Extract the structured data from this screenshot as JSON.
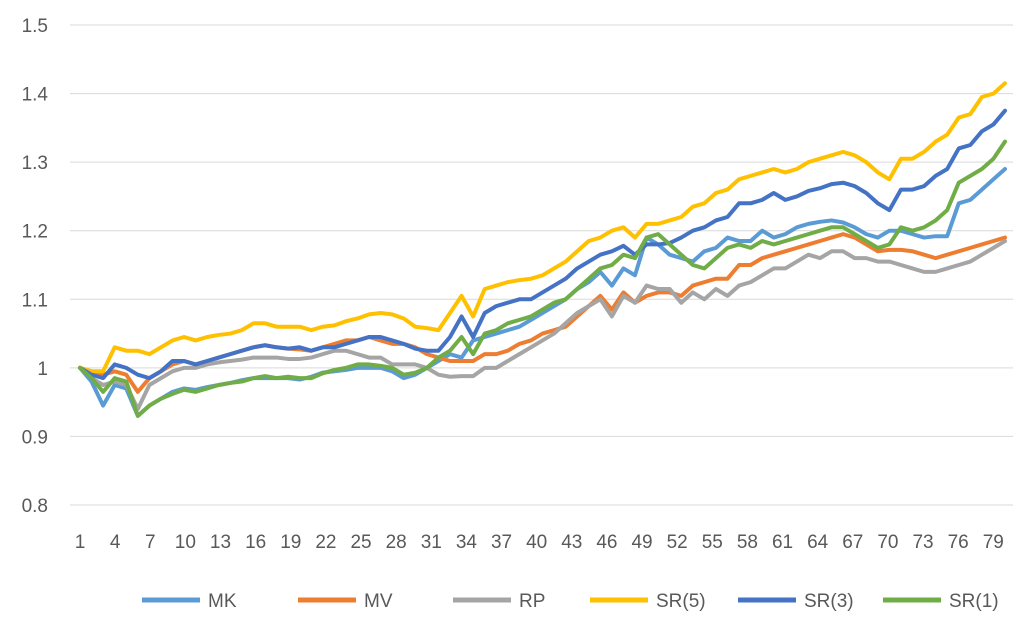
{
  "chart_data": {
    "type": "line",
    "title": "",
    "xlabel": "",
    "ylabel": "",
    "ylim": [
      0.8,
      1.5
    ],
    "y_ticks": [
      "0.8",
      "0.9",
      "1",
      "1.1",
      "1.2",
      "1.3",
      "1.4",
      "1.5"
    ],
    "x_tick_labels": [
      "1",
      "4",
      "7",
      "10",
      "13",
      "16",
      "19",
      "22",
      "25",
      "28",
      "31",
      "34",
      "37",
      "40",
      "43",
      "46",
      "49",
      "52",
      "55",
      "58",
      "61",
      "64",
      "67",
      "70",
      "73",
      "76",
      "79"
    ],
    "x_range": [
      1,
      80
    ],
    "grid": "horizontal",
    "legend_position": "bottom",
    "series": [
      {
        "name": "MK",
        "color": "#5B9BD5",
        "values": [
          1.0,
          0.98,
          0.945,
          0.975,
          0.97,
          0.93,
          0.945,
          0.955,
          0.965,
          0.97,
          0.968,
          0.972,
          0.975,
          0.978,
          0.982,
          0.985,
          0.985,
          0.985,
          0.985,
          0.983,
          0.987,
          0.993,
          0.995,
          0.997,
          1.0,
          1.0,
          1.0,
          0.995,
          0.985,
          0.99,
          1.0,
          1.01,
          1.02,
          1.015,
          1.04,
          1.045,
          1.05,
          1.055,
          1.06,
          1.07,
          1.08,
          1.09,
          1.1,
          1.115,
          1.125,
          1.14,
          1.12,
          1.145,
          1.135,
          1.19,
          1.18,
          1.165,
          1.16,
          1.155,
          1.17,
          1.175,
          1.19,
          1.185,
          1.185,
          1.2,
          1.19,
          1.195,
          1.205,
          1.21,
          1.213,
          1.215,
          1.212,
          1.205,
          1.195,
          1.19,
          1.2,
          1.2,
          1.195,
          1.19,
          1.192,
          1.192,
          1.24,
          1.245,
          1.26,
          1.275,
          1.29
        ]
      },
      {
        "name": "MV",
        "color": "#ED7D31",
        "values": [
          1.0,
          0.995,
          0.99,
          0.995,
          0.99,
          0.965,
          0.985,
          0.995,
          1.005,
          1.01,
          1.005,
          1.01,
          1.015,
          1.02,
          1.025,
          1.03,
          1.033,
          1.03,
          1.028,
          1.027,
          1.025,
          1.03,
          1.035,
          1.04,
          1.04,
          1.045,
          1.04,
          1.035,
          1.035,
          1.03,
          1.02,
          1.015,
          1.01,
          1.01,
          1.01,
          1.02,
          1.02,
          1.025,
          1.035,
          1.04,
          1.05,
          1.055,
          1.06,
          1.075,
          1.09,
          1.105,
          1.085,
          1.11,
          1.095,
          1.105,
          1.11,
          1.11,
          1.105,
          1.12,
          1.125,
          1.13,
          1.13,
          1.15,
          1.15,
          1.16,
          1.165,
          1.17,
          1.175,
          1.18,
          1.185,
          1.19,
          1.195,
          1.19,
          1.18,
          1.17,
          1.172,
          1.172,
          1.17,
          1.165,
          1.16,
          1.165,
          1.17,
          1.175,
          1.18,
          1.185,
          1.19
        ]
      },
      {
        "name": "RP",
        "color": "#A5A5A5",
        "values": [
          1.0,
          0.985,
          0.975,
          0.98,
          0.975,
          0.94,
          0.975,
          0.985,
          0.995,
          1.0,
          1.0,
          1.005,
          1.008,
          1.01,
          1.012,
          1.015,
          1.015,
          1.015,
          1.013,
          1.013,
          1.015,
          1.02,
          1.025,
          1.025,
          1.02,
          1.015,
          1.015,
          1.005,
          1.005,
          1.005,
          1.0,
          0.99,
          0.987,
          0.988,
          0.988,
          1.0,
          1.0,
          1.01,
          1.02,
          1.03,
          1.04,
          1.05,
          1.065,
          1.08,
          1.09,
          1.1,
          1.075,
          1.105,
          1.095,
          1.12,
          1.115,
          1.115,
          1.095,
          1.11,
          1.1,
          1.115,
          1.105,
          1.12,
          1.125,
          1.135,
          1.145,
          1.145,
          1.155,
          1.165,
          1.16,
          1.17,
          1.17,
          1.16,
          1.16,
          1.155,
          1.155,
          1.15,
          1.145,
          1.14,
          1.14,
          1.145,
          1.15,
          1.155,
          1.165,
          1.175,
          1.185
        ]
      },
      {
        "name": "SR(5)",
        "color": "#FFC000",
        "values": [
          1.0,
          0.995,
          0.995,
          1.03,
          1.025,
          1.025,
          1.02,
          1.03,
          1.04,
          1.045,
          1.04,
          1.045,
          1.048,
          1.05,
          1.055,
          1.065,
          1.065,
          1.06,
          1.06,
          1.06,
          1.055,
          1.06,
          1.062,
          1.068,
          1.072,
          1.078,
          1.08,
          1.078,
          1.072,
          1.06,
          1.058,
          1.055,
          1.08,
          1.105,
          1.075,
          1.115,
          1.12,
          1.125,
          1.128,
          1.13,
          1.135,
          1.145,
          1.155,
          1.17,
          1.185,
          1.19,
          1.2,
          1.205,
          1.19,
          1.21,
          1.21,
          1.215,
          1.22,
          1.235,
          1.24,
          1.255,
          1.26,
          1.275,
          1.28,
          1.285,
          1.29,
          1.285,
          1.29,
          1.3,
          1.305,
          1.31,
          1.315,
          1.31,
          1.3,
          1.285,
          1.275,
          1.305,
          1.305,
          1.315,
          1.33,
          1.34,
          1.365,
          1.37,
          1.395,
          1.4,
          1.415
        ]
      },
      {
        "name": "SR(3)",
        "color": "#4472C4",
        "values": [
          1.0,
          0.99,
          0.985,
          1.005,
          1.0,
          0.99,
          0.985,
          0.995,
          1.01,
          1.01,
          1.005,
          1.01,
          1.015,
          1.02,
          1.025,
          1.03,
          1.033,
          1.03,
          1.028,
          1.03,
          1.025,
          1.03,
          1.03,
          1.035,
          1.04,
          1.045,
          1.045,
          1.04,
          1.035,
          1.028,
          1.025,
          1.025,
          1.045,
          1.075,
          1.045,
          1.08,
          1.09,
          1.095,
          1.1,
          1.1,
          1.11,
          1.12,
          1.13,
          1.145,
          1.155,
          1.165,
          1.17,
          1.178,
          1.165,
          1.18,
          1.18,
          1.182,
          1.19,
          1.2,
          1.205,
          1.215,
          1.22,
          1.24,
          1.24,
          1.245,
          1.255,
          1.245,
          1.25,
          1.258,
          1.262,
          1.268,
          1.27,
          1.265,
          1.255,
          1.24,
          1.23,
          1.26,
          1.26,
          1.265,
          1.28,
          1.29,
          1.32,
          1.325,
          1.345,
          1.355,
          1.375
        ]
      },
      {
        "name": "SR(1)",
        "color": "#70AD47",
        "values": [
          1.0,
          0.985,
          0.965,
          0.985,
          0.98,
          0.93,
          0.945,
          0.955,
          0.962,
          0.968,
          0.965,
          0.97,
          0.975,
          0.978,
          0.98,
          0.985,
          0.988,
          0.985,
          0.987,
          0.985,
          0.985,
          0.992,
          0.997,
          1.0,
          1.005,
          1.005,
          1.003,
          1.0,
          0.99,
          0.993,
          1.0,
          1.015,
          1.025,
          1.045,
          1.02,
          1.05,
          1.055,
          1.065,
          1.07,
          1.075,
          1.085,
          1.095,
          1.1,
          1.115,
          1.13,
          1.145,
          1.15,
          1.165,
          1.16,
          1.19,
          1.195,
          1.18,
          1.165,
          1.15,
          1.145,
          1.16,
          1.175,
          1.18,
          1.175,
          1.185,
          1.18,
          1.185,
          1.19,
          1.195,
          1.2,
          1.205,
          1.205,
          1.195,
          1.185,
          1.175,
          1.18,
          1.205,
          1.2,
          1.205,
          1.215,
          1.23,
          1.27,
          1.28,
          1.29,
          1.305,
          1.33
        ]
      }
    ]
  }
}
